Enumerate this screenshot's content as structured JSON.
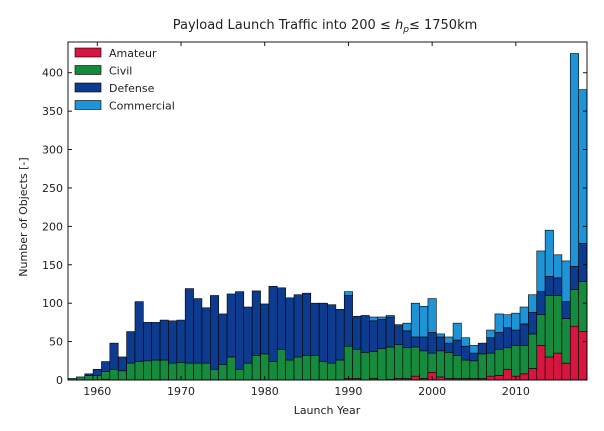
{
  "chart_data": {
    "type": "bar",
    "stacked": true,
    "title": {
      "prefix": "Payload Launch Traffic into 200 ",
      "le": "≤",
      "var": "h",
      "sub": "p",
      "le2": "≤",
      "suffix": " 1750km"
    },
    "xlabel": "Launch Year",
    "ylabel": "Number of Objects [-]",
    "xlim": [
      1956.5,
      2018.5
    ],
    "ylim": [
      0,
      440
    ],
    "xticks": [
      1960,
      1970,
      1980,
      1990,
      2000,
      2010
    ],
    "yticks": [
      0,
      50,
      100,
      150,
      200,
      250,
      300,
      350,
      400
    ],
    "legend_position": "top-left",
    "x": [
      1957,
      1958,
      1959,
      1960,
      1961,
      1962,
      1963,
      1964,
      1965,
      1966,
      1967,
      1968,
      1969,
      1970,
      1971,
      1972,
      1973,
      1974,
      1975,
      1976,
      1977,
      1978,
      1979,
      1980,
      1981,
      1982,
      1983,
      1984,
      1985,
      1986,
      1987,
      1988,
      1989,
      1990,
      1991,
      1992,
      1993,
      1994,
      1995,
      1996,
      1997,
      1998,
      1999,
      2000,
      2001,
      2002,
      2003,
      2004,
      2005,
      2006,
      2007,
      2008,
      2009,
      2010,
      2011,
      2012,
      2013,
      2014,
      2015,
      2016,
      2017,
      2018
    ],
    "series": [
      {
        "name": "Amateur",
        "color": "#d6163f",
        "values": [
          0,
          0,
          0,
          0,
          1,
          0,
          0,
          0,
          0,
          0,
          0,
          0,
          0,
          0,
          0,
          0,
          0,
          0,
          0,
          0,
          0,
          0,
          0,
          0,
          0,
          0,
          0,
          0,
          0,
          0,
          0,
          0,
          0,
          2,
          2,
          0,
          2,
          0,
          1,
          2,
          2,
          5,
          2,
          10,
          4,
          2,
          2,
          2,
          2,
          2,
          5,
          6,
          14,
          5,
          8,
          15,
          45,
          30,
          35,
          22,
          70,
          63
        ]
      },
      {
        "name": "Civil",
        "color": "#168a3d",
        "values": [
          2,
          4,
          6,
          6,
          10,
          14,
          12,
          22,
          24,
          25,
          26,
          26,
          22,
          23,
          22,
          22,
          22,
          14,
          20,
          30,
          14,
          22,
          32,
          34,
          24,
          40,
          26,
          30,
          32,
          32,
          24,
          22,
          26,
          42,
          38,
          36,
          35,
          41,
          42,
          44,
          40,
          38,
          36,
          25,
          34,
          34,
          30,
          24,
          23,
          32,
          30,
          34,
          28,
          40,
          37,
          45,
          40,
          80,
          75,
          58,
          48,
          65
        ]
      },
      {
        "name": "Defense",
        "color": "#0d3b8f",
        "values": [
          0,
          0,
          2,
          8,
          13,
          34,
          18,
          41,
          78,
          50,
          49,
          52,
          55,
          55,
          97,
          84,
          72,
          96,
          66,
          82,
          101,
          73,
          84,
          65,
          98,
          80,
          81,
          81,
          81,
          68,
          76,
          76,
          66,
          66,
          43,
          48,
          40,
          38,
          39,
          26,
          22,
          13,
          18,
          27,
          18,
          12,
          20,
          18,
          10,
          14,
          20,
          22,
          26,
          20,
          28,
          28,
          30,
          25,
          23,
          22,
          30,
          50
        ]
      },
      {
        "name": "Commercial",
        "color": "#1e93d6",
        "values": [
          0,
          0,
          0,
          0,
          0,
          0,
          0,
          0,
          0,
          0,
          0,
          0,
          0,
          0,
          0,
          0,
          0,
          0,
          0,
          0,
          0,
          0,
          0,
          0,
          0,
          0,
          0,
          0,
          0,
          0,
          0,
          0,
          0,
          5,
          0,
          0,
          5,
          3,
          2,
          0,
          10,
          44,
          40,
          44,
          4,
          8,
          22,
          11,
          10,
          0,
          10,
          24,
          17,
          22,
          22,
          23,
          53,
          60,
          30,
          53,
          277,
          200
        ]
      }
    ]
  }
}
